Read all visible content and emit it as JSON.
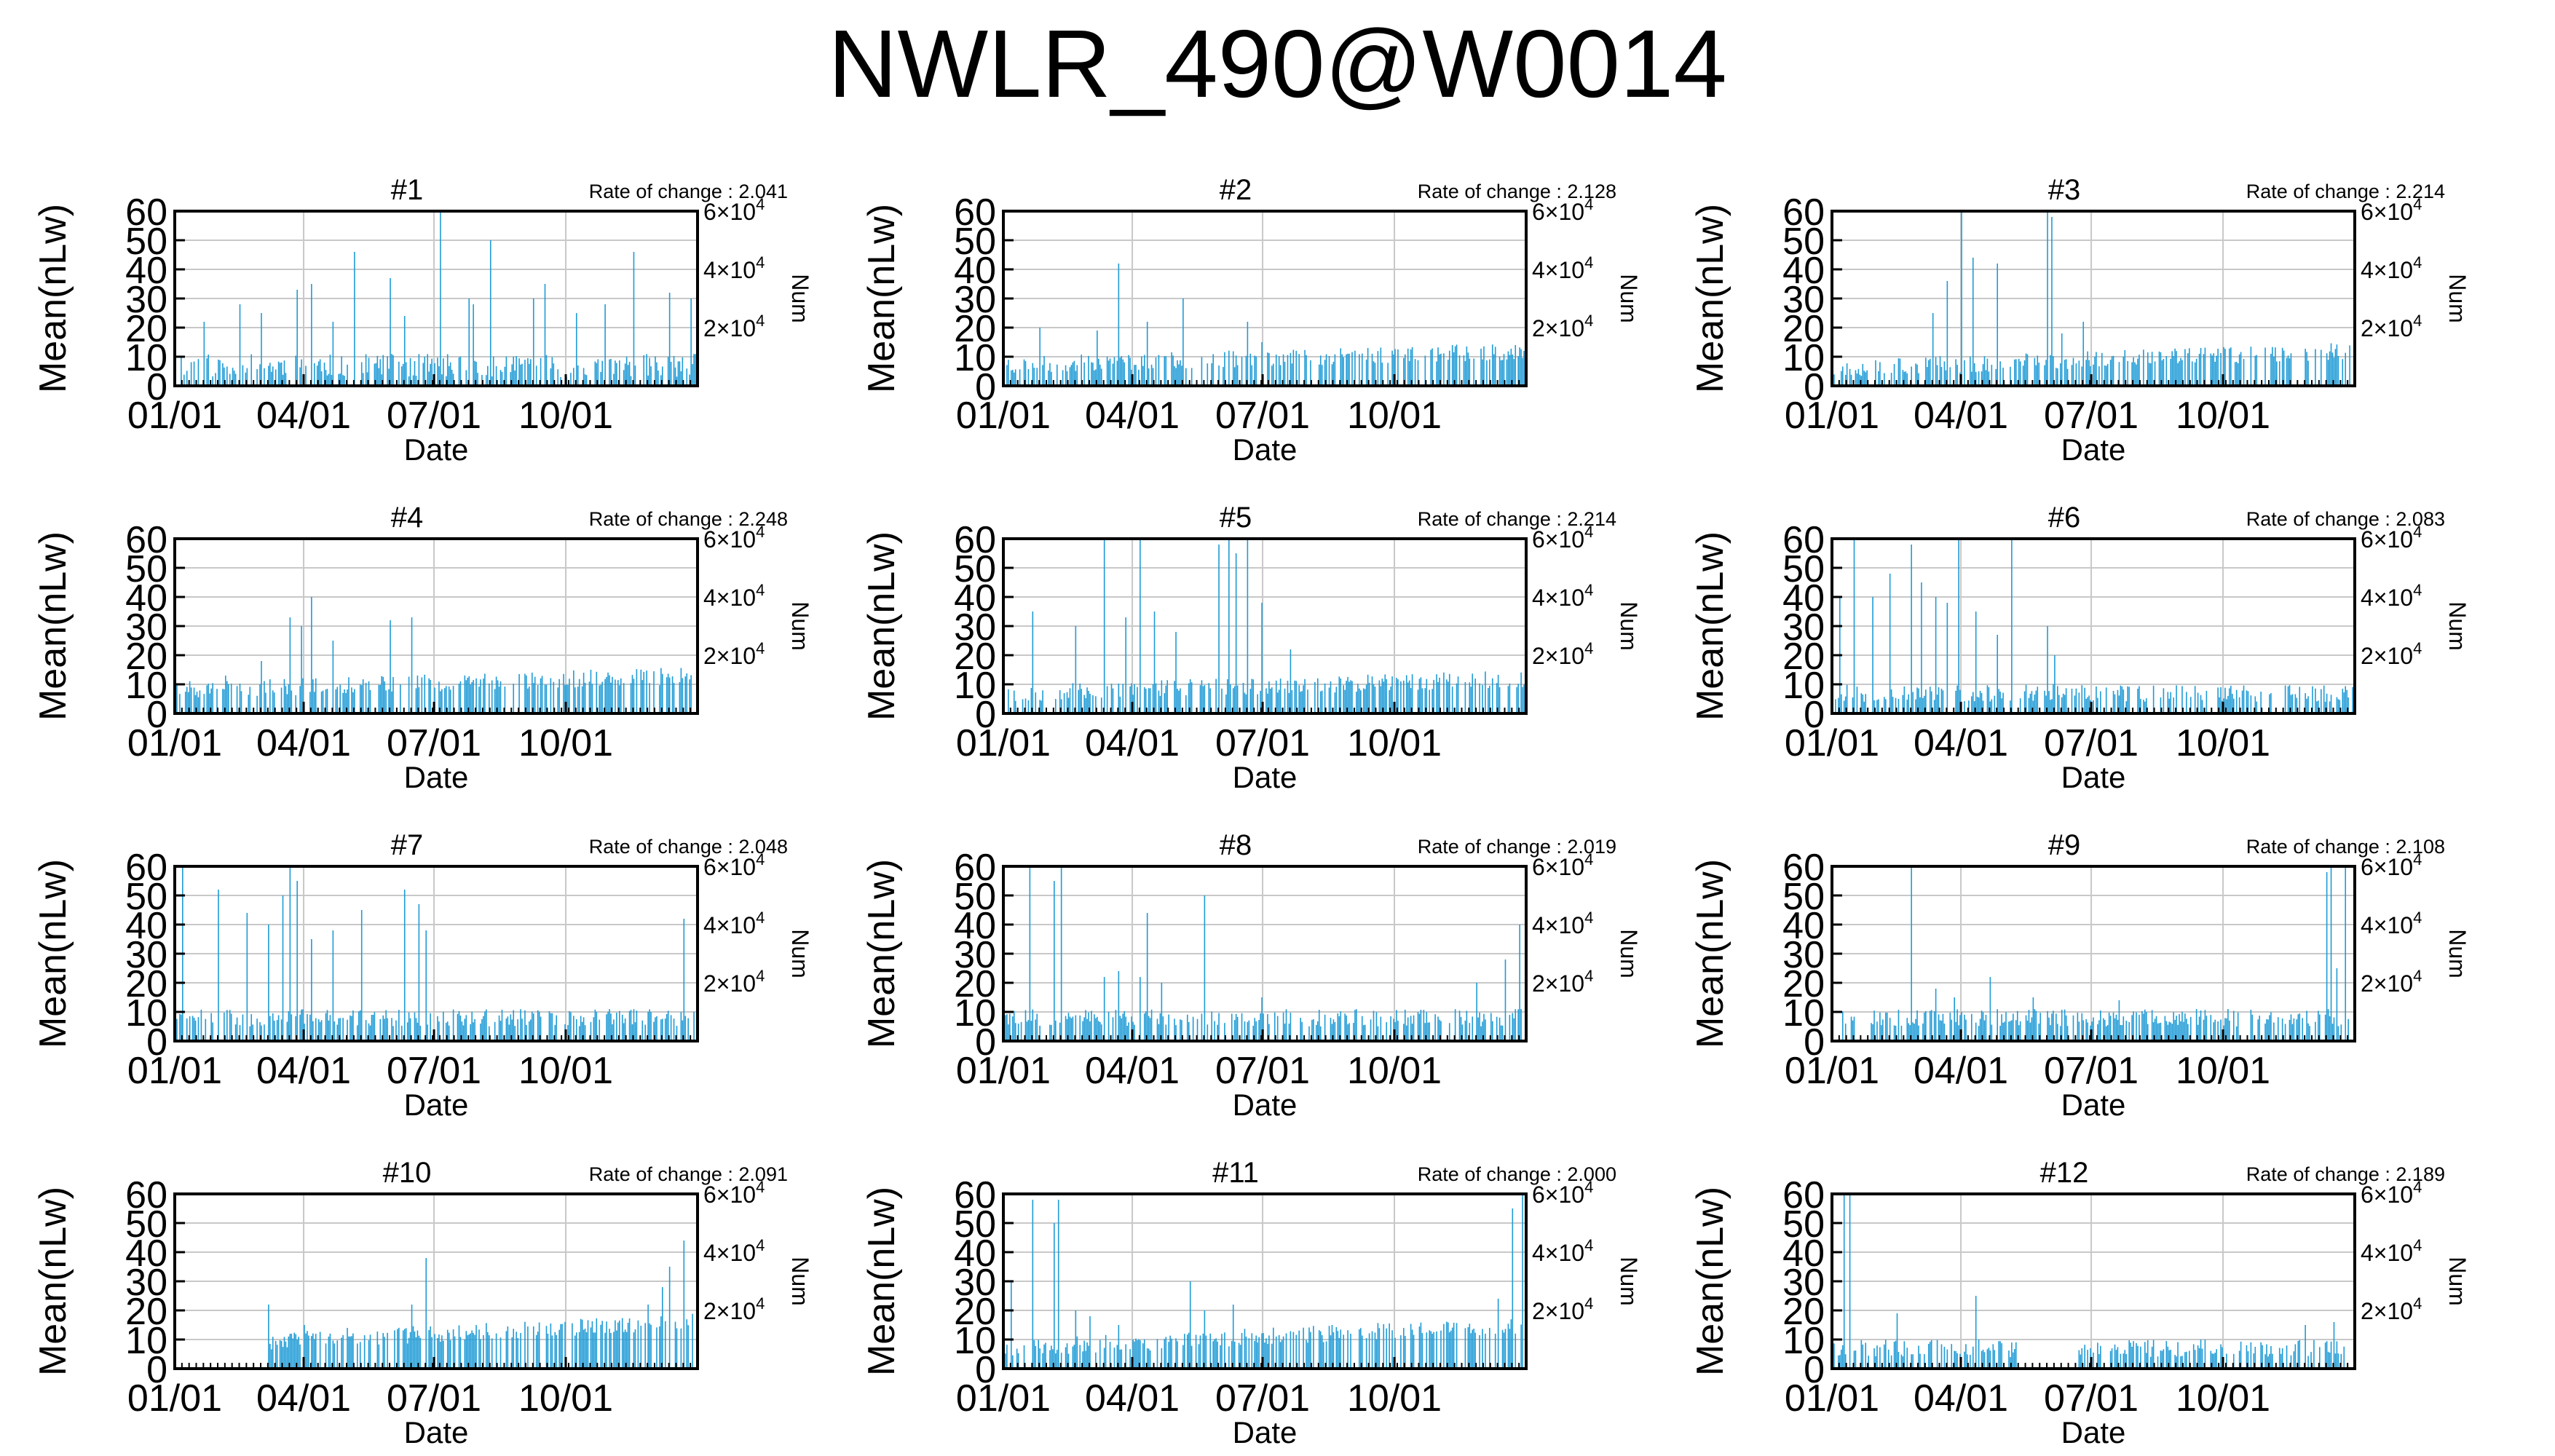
{
  "title": "NWLR_490@W0014",
  "shared": {
    "y_label": "Mean(nLw)",
    "x_label": "Date",
    "right_label": "Num",
    "y_ticks": [
      "0",
      "10",
      "20",
      "30",
      "40",
      "50",
      "60"
    ],
    "x_ticks": [
      "01/01",
      "04/01",
      "07/01",
      "10/01"
    ],
    "x_tick_days": [
      0,
      90,
      181,
      273
    ],
    "right_ticks": [
      {
        "mantissa": "2×10",
        "exp": "4",
        "value": 20000
      },
      {
        "mantissa": "4×10",
        "exp": "4",
        "value": 40000
      },
      {
        "mantissa": "6×10",
        "exp": "4",
        "value": 60000
      }
    ],
    "colors": {
      "series": "#1f9bd6",
      "grid": "#c8c8c8",
      "frame": "#000000"
    }
  },
  "chart_data": [
    {
      "type": "bar",
      "title": "#1",
      "rate_label": "Rate of change : 2.041",
      "xlabel": "Date",
      "ylabel": "Mean(nLw)",
      "y2label": "Num",
      "ylim": [
        0,
        60
      ],
      "y2lim": [
        0,
        60000
      ],
      "x_unit": "day of year",
      "style": {
        "base": 7,
        "noise": 4,
        "spikes": [
          [
            20,
            22
          ],
          [
            45,
            28
          ],
          [
            60,
            25
          ],
          [
            85,
            33
          ],
          [
            95,
            35
          ],
          [
            110,
            22
          ],
          [
            125,
            46
          ],
          [
            150,
            37
          ],
          [
            160,
            24
          ],
          [
            185,
            60
          ],
          [
            205,
            30
          ],
          [
            208,
            28
          ],
          [
            220,
            50
          ],
          [
            250,
            30
          ],
          [
            258,
            35
          ],
          [
            280,
            25
          ],
          [
            300,
            28
          ],
          [
            320,
            46
          ],
          [
            345,
            32
          ],
          [
            360,
            30
          ]
        ],
        "seed": 11
      }
    },
    {
      "type": "bar",
      "title": "#2",
      "rate_label": "Rate of change : 2.128",
      "xlabel": "Date",
      "ylabel": "Mean(nLw)",
      "y2label": "Num",
      "ylim": [
        0,
        60
      ],
      "y2lim": [
        0,
        60000
      ],
      "x_unit": "day of year",
      "style": {
        "base": 7,
        "noise": 3,
        "ramp": 5,
        "spikes": [
          [
            25,
            20
          ],
          [
            65,
            19
          ],
          [
            80,
            42
          ],
          [
            100,
            22
          ],
          [
            125,
            30
          ],
          [
            170,
            22
          ],
          [
            180,
            15
          ]
        ],
        "seed": 23
      }
    },
    {
      "type": "bar",
      "title": "#3",
      "rate_label": "Rate of change : 2.214",
      "xlabel": "Date",
      "ylabel": "Mean(nLw)",
      "y2label": "Num",
      "ylim": [
        0,
        60
      ],
      "y2lim": [
        0,
        60000
      ],
      "x_unit": "day of year",
      "style": {
        "base": 6,
        "noise": 3,
        "ramp": 6,
        "spikes": [
          [
            70,
            25
          ],
          [
            80,
            36
          ],
          [
            90,
            60
          ],
          [
            98,
            44
          ],
          [
            115,
            42
          ],
          [
            150,
            60
          ],
          [
            153,
            58
          ],
          [
            160,
            18
          ],
          [
            175,
            22
          ]
        ],
        "seed": 37
      }
    },
    {
      "type": "bar",
      "title": "#4",
      "rate_label": "Rate of change : 2.248",
      "xlabel": "Date",
      "ylabel": "Mean(nLw)",
      "y2label": "Num",
      "ylim": [
        0,
        60
      ],
      "y2lim": [
        0,
        60000
      ],
      "x_unit": "day of year",
      "style": {
        "base": 8,
        "noise": 3,
        "ramp": 5,
        "spikes": [
          [
            35,
            13
          ],
          [
            60,
            18
          ],
          [
            80,
            33
          ],
          [
            88,
            30
          ],
          [
            95,
            40
          ],
          [
            110,
            25
          ],
          [
            150,
            32
          ],
          [
            165,
            33
          ],
          [
            290,
            15
          ]
        ],
        "seed": 41
      }
    },
    {
      "type": "bar",
      "title": "#5",
      "rate_label": "Rate of change : 2.214",
      "xlabel": "Date",
      "ylabel": "Mean(nLw)",
      "y2label": "Num",
      "ylim": [
        0,
        60
      ],
      "y2lim": [
        0,
        60000
      ],
      "x_unit": "day of year",
      "style": {
        "base": 7,
        "noise": 3,
        "ramp": 5,
        "spikes": [
          [
            20,
            35
          ],
          [
            50,
            30
          ],
          [
            70,
            60
          ],
          [
            85,
            33
          ],
          [
            95,
            60
          ],
          [
            105,
            35
          ],
          [
            120,
            28
          ],
          [
            150,
            58
          ],
          [
            157,
            60
          ],
          [
            162,
            55
          ],
          [
            170,
            60
          ],
          [
            180,
            38
          ],
          [
            200,
            22
          ]
        ],
        "seed": 53
      }
    },
    {
      "type": "bar",
      "title": "#6",
      "rate_label": "Rate of change : 2.083",
      "xlabel": "Date",
      "ylabel": "Mean(nLw)",
      "y2label": "Num",
      "ylim": [
        0,
        60
      ],
      "y2lim": [
        0,
        60000
      ],
      "x_unit": "day of year",
      "style": {
        "base": 7,
        "noise": 3,
        "spikes": [
          [
            5,
            40
          ],
          [
            15,
            60
          ],
          [
            28,
            40
          ],
          [
            40,
            48
          ],
          [
            55,
            58
          ],
          [
            62,
            45
          ],
          [
            72,
            40
          ],
          [
            80,
            38
          ],
          [
            88,
            60
          ],
          [
            100,
            35
          ],
          [
            115,
            27
          ],
          [
            125,
            60
          ],
          [
            150,
            30
          ],
          [
            155,
            20
          ]
        ],
        "seed": 67
      }
    },
    {
      "type": "bar",
      "title": "#7",
      "rate_label": "Rate of change : 2.048",
      "xlabel": "Date",
      "ylabel": "Mean(nLw)",
      "y2label": "Num",
      "ylim": [
        0,
        60
      ],
      "y2lim": [
        0,
        60000
      ],
      "x_unit": "day of year",
      "style": {
        "base": 8,
        "noise": 3,
        "spikes": [
          [
            5,
            60
          ],
          [
            30,
            52
          ],
          [
            50,
            44
          ],
          [
            65,
            40
          ],
          [
            75,
            50
          ],
          [
            80,
            60
          ],
          [
            85,
            55
          ],
          [
            95,
            35
          ],
          [
            110,
            38
          ],
          [
            130,
            45
          ],
          [
            160,
            52
          ],
          [
            170,
            47
          ],
          [
            175,
            38
          ],
          [
            355,
            42
          ]
        ],
        "seed": 71
      }
    },
    {
      "type": "bar",
      "title": "#8",
      "rate_label": "Rate of change : 2.019",
      "xlabel": "Date",
      "ylabel": "Mean(nLw)",
      "y2label": "Num",
      "ylim": [
        0,
        60
      ],
      "y2lim": [
        0,
        60000
      ],
      "x_unit": "day of year",
      "style": {
        "base": 8,
        "noise": 3,
        "spikes": [
          [
            18,
            60
          ],
          [
            35,
            55
          ],
          [
            40,
            60
          ],
          [
            70,
            22
          ],
          [
            80,
            24
          ],
          [
            95,
            22
          ],
          [
            100,
            44
          ],
          [
            110,
            20
          ],
          [
            140,
            50
          ],
          [
            180,
            15
          ],
          [
            330,
            20
          ],
          [
            350,
            28
          ],
          [
            360,
            40
          ]
        ],
        "seed": 83
      }
    },
    {
      "type": "bar",
      "title": "#9",
      "rate_label": "Rate of change : 2.108",
      "xlabel": "Date",
      "ylabel": "Mean(nLw)",
      "y2label": "Num",
      "ylim": [
        0,
        60
      ],
      "y2lim": [
        0,
        60000
      ],
      "x_unit": "day of year",
      "style": {
        "base": 8,
        "noise": 3,
        "spikes": [
          [
            55,
            60
          ],
          [
            72,
            18
          ],
          [
            85,
            15
          ],
          [
            110,
            22
          ],
          [
            140,
            15
          ],
          [
            200,
            14
          ],
          [
            345,
            58
          ],
          [
            348,
            60
          ],
          [
            352,
            25
          ],
          [
            358,
            60
          ]
        ],
        "seed": 97
      }
    },
    {
      "type": "bar",
      "title": "#10",
      "rate_label": "Rate of change : 2.091",
      "xlabel": "Date",
      "ylabel": "Mean(nLw)",
      "y2label": "Num",
      "ylim": [
        0,
        60
      ],
      "y2lim": [
        0,
        60000
      ],
      "x_unit": "day of year",
      "style": {
        "base": 8,
        "noise": 3,
        "start": 65,
        "ramp": 8,
        "spikes": [
          [
            65,
            22
          ],
          [
            90,
            15
          ],
          [
            120,
            14
          ],
          [
            165,
            22
          ],
          [
            175,
            38
          ],
          [
            260,
            12
          ],
          [
            330,
            22
          ],
          [
            340,
            28
          ],
          [
            345,
            35
          ],
          [
            355,
            44
          ]
        ],
        "seed": 103
      }
    },
    {
      "type": "bar",
      "title": "#11",
      "rate_label": "Rate of change : 2.000",
      "xlabel": "Date",
      "ylabel": "Mean(nLw)",
      "y2label": "Num",
      "ylim": [
        0,
        60
      ],
      "y2lim": [
        0,
        60000
      ],
      "x_unit": "day of year",
      "style": {
        "base": 7,
        "noise": 3,
        "ramp": 8,
        "spikes": [
          [
            5,
            30
          ],
          [
            20,
            58
          ],
          [
            35,
            50
          ],
          [
            38,
            58
          ],
          [
            50,
            20
          ],
          [
            60,
            18
          ],
          [
            80,
            15
          ],
          [
            130,
            30
          ],
          [
            140,
            20
          ],
          [
            160,
            22
          ],
          [
            345,
            24
          ],
          [
            355,
            55
          ],
          [
            362,
            60
          ]
        ],
        "seed": 113
      }
    },
    {
      "type": "bar",
      "title": "#12",
      "rate_label": "Rate of change : 2.189",
      "xlabel": "Date",
      "ylabel": "Mean(nLw)",
      "y2label": "Num",
      "ylim": [
        0,
        60
      ],
      "y2lim": [
        0,
        60000
      ],
      "x_unit": "day of year",
      "style": {
        "base": 7,
        "noise": 3,
        "gaps": [
          [
            130,
            170
          ]
        ],
        "spikes": [
          [
            8,
            60
          ],
          [
            12,
            60
          ],
          [
            45,
            19
          ],
          [
            100,
            25
          ],
          [
            330,
            15
          ],
          [
            350,
            16
          ]
        ],
        "seed": 127
      }
    }
  ]
}
